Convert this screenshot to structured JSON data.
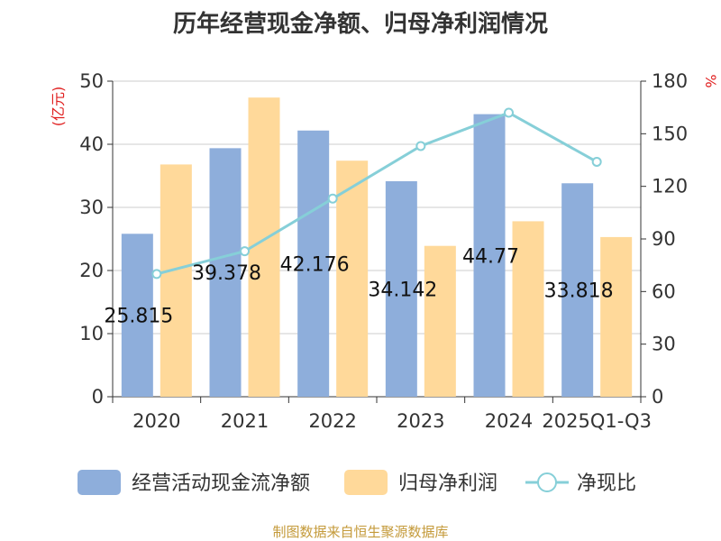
{
  "title": "历年经营现金净额、归母净利润情况",
  "source": "制图数据来自恒生聚源数据库",
  "left_unit": "(亿元)",
  "right_unit": "%",
  "colors": {
    "bar1": "#8eaedb",
    "bar2": "#ffd99a",
    "line": "#86cfd8",
    "unit": "#e02020",
    "source": "#c49a3a"
  },
  "legend": {
    "s1": "经营活动现金流净额",
    "s2": "归母净利润",
    "s3": "净现比"
  },
  "chart_data": {
    "type": "bar",
    "categories": [
      "2020",
      "2021",
      "2022",
      "2023",
      "2024",
      "2025Q1-Q3"
    ],
    "series": [
      {
        "name": "经营活动现金流净额",
        "type": "bar",
        "axis": "left",
        "values": [
          25.815,
          39.378,
          42.176,
          34.142,
          44.77,
          33.818
        ],
        "labels": [
          "25.815",
          "39.378",
          "42.176",
          "34.142",
          "44.77",
          "33.818"
        ]
      },
      {
        "name": "归母净利润",
        "type": "bar",
        "axis": "left",
        "values": [
          36.8,
          47.4,
          37.4,
          23.9,
          27.8,
          25.3
        ]
      },
      {
        "name": "净现比",
        "type": "line",
        "axis": "right",
        "values": [
          70,
          83,
          113,
          143,
          162,
          134
        ]
      }
    ],
    "left_axis": {
      "ylim": [
        0,
        50
      ],
      "ticks": [
        "0",
        "10",
        "20",
        "30",
        "40",
        "50"
      ]
    },
    "right_axis": {
      "ylim": [
        0,
        180
      ],
      "ticks": [
        "0",
        "30",
        "60",
        "90",
        "120",
        "150",
        "180"
      ]
    },
    "grid": true,
    "legend_position": "bottom"
  }
}
